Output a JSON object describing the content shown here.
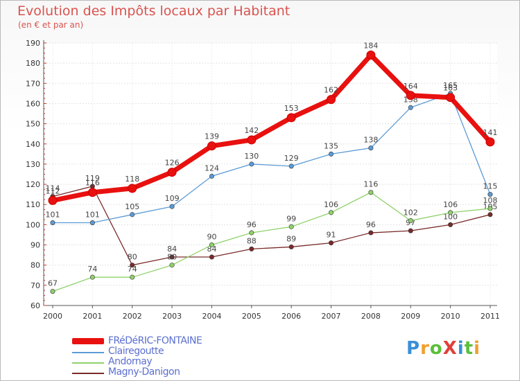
{
  "title": "Evolution des Impôts locaux par Habitant",
  "subtitle": "(en € et par an)",
  "logo": "ProXiti",
  "chart_data": {
    "type": "line",
    "title": "Evolution des Impôts locaux par Habitant",
    "subtitle": "(en € et par an)",
    "xlabel": "",
    "ylabel": "",
    "x": [
      "2000",
      "2001",
      "2002",
      "2003",
      "2004",
      "2005",
      "2006",
      "2007",
      "2008",
      "2009",
      "2010",
      "2011"
    ],
    "ylim": [
      60,
      190
    ],
    "yticks": [
      60,
      70,
      80,
      90,
      100,
      110,
      120,
      130,
      140,
      150,
      160,
      170,
      180,
      190
    ],
    "grid": true,
    "legend_position": "bottom-left",
    "series": [
      {
        "name": "FRéDéRIC-FONTAINE",
        "color": "#e8110f",
        "values": [
          112,
          116,
          118,
          126,
          139,
          142,
          153,
          162,
          184,
          164,
          163,
          141
        ]
      },
      {
        "name": "Clairegoutte",
        "color": "#5b9bd5",
        "values": [
          101,
          101,
          105,
          109,
          124,
          130,
          129,
          135,
          138,
          158,
          165,
          115
        ]
      },
      {
        "name": "Andornay",
        "color": "#8fd16a",
        "values": [
          67,
          74,
          74,
          80,
          90,
          96,
          99,
          106,
          116,
          102,
          106,
          108
        ]
      },
      {
        "name": "Magny-Danigon",
        "color": "#7a2a2a",
        "values": [
          114,
          119,
          80,
          84,
          84,
          88,
          89,
          91,
          96,
          97,
          100,
          105
        ]
      }
    ]
  }
}
